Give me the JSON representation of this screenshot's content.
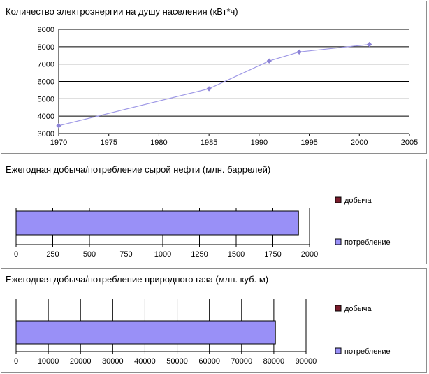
{
  "chart_data": [
    {
      "type": "line",
      "title": "Количество электроэнергии на душу населения (кВт*ч)",
      "xlabel": "",
      "ylabel": "",
      "xlim": [
        1970,
        2005
      ],
      "ylim": [
        3000,
        9000
      ],
      "x_ticks": [
        "1970",
        "1975",
        "1980",
        "1985",
        "1990",
        "1995",
        "2000",
        "2005"
      ],
      "y_ticks": [
        "3000",
        "4000",
        "5000",
        "6000",
        "7000",
        "8000",
        "9000"
      ],
      "grid": "horizontal",
      "series": [
        {
          "x": [
            1970,
            1985,
            1991,
            1994,
            2001
          ],
          "y": [
            3450,
            5580,
            7180,
            7700,
            8130
          ],
          "color": "#9f99e6",
          "marker_color": "#8c83d6"
        }
      ]
    },
    {
      "type": "bar",
      "orientation": "horizontal",
      "title": "Ежегодная добыча/потребление сырой нефти (млн. баррелей)",
      "xlim": [
        0,
        2000
      ],
      "x_ticks": [
        "0",
        "250",
        "500",
        "750",
        "1000",
        "1250",
        "1500",
        "1750",
        "2000"
      ],
      "grid": "vertical",
      "legend_position": "right",
      "series": [
        {
          "name": "добыча",
          "value": 0,
          "color": "#7a1c2c"
        },
        {
          "name": "потребление",
          "value": 1925,
          "color": "#9990f7"
        }
      ]
    },
    {
      "type": "bar",
      "orientation": "horizontal",
      "title": "Ежегодная добыча/потребление природного газа (млн. куб. м)",
      "xlim": [
        0,
        90000
      ],
      "x_ticks": [
        "0",
        "10000",
        "20000",
        "30000",
        "40000",
        "50000",
        "60000",
        "70000",
        "80000",
        "90000"
      ],
      "grid": "vertical",
      "legend_position": "right",
      "series": [
        {
          "name": "добыча",
          "value": 0,
          "color": "#7a1c2c"
        },
        {
          "name": "потребление",
          "value": 80500,
          "color": "#9990f7"
        }
      ]
    }
  ]
}
